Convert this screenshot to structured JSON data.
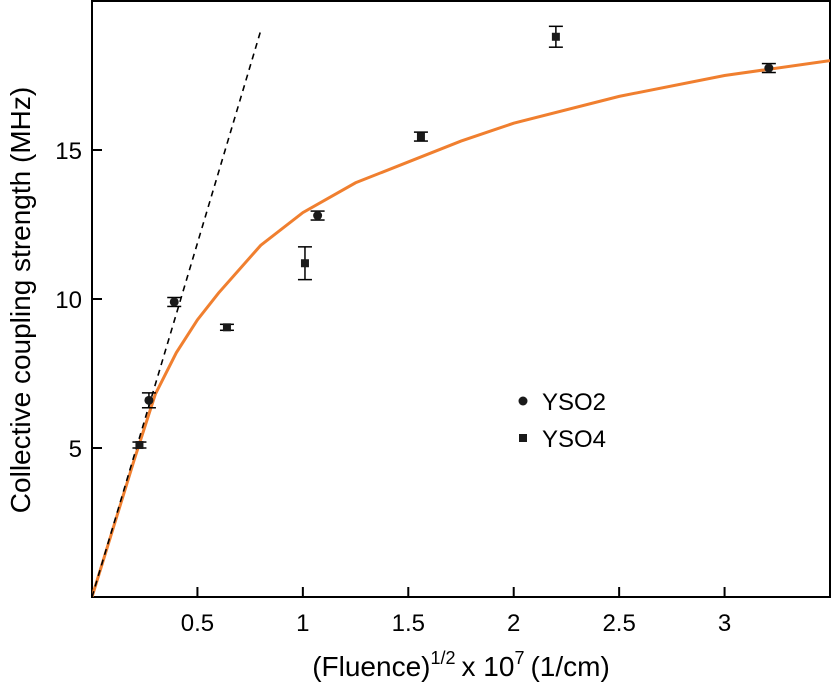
{
  "chart_data": {
    "type": "scatter",
    "x_label": [
      "(Fluence)",
      "1/2",
      "x 10",
      "7",
      "(1/cm)"
    ],
    "y_label": "Collective coupling strength (MHz)",
    "xlim": [
      0,
      3.5
    ],
    "ylim": [
      0,
      20
    ],
    "xticks": [
      0.5,
      1,
      1.5,
      2,
      2.5,
      3
    ],
    "yticks": [
      5,
      10,
      15
    ],
    "series": [
      {
        "name": "YSO2",
        "marker": "circle",
        "color": "#1a1a1a",
        "x": [
          0.27,
          0.39,
          1.07,
          3.21
        ],
        "values": [
          6.6,
          9.9,
          12.8,
          17.75
        ],
        "errors": [
          0.25,
          0.15,
          0.15,
          0.15
        ]
      },
      {
        "name": "YSO4",
        "marker": "square",
        "color": "#1a1a1a",
        "x": [
          0.225,
          0.64,
          1.01,
          1.56,
          2.2
        ],
        "values": [
          5.1,
          9.05,
          11.2,
          15.45,
          18.8
        ],
        "errors": [
          0.1,
          0.1,
          0.55,
          0.15,
          0.35
        ]
      }
    ],
    "lines": [
      {
        "style": "solid",
        "color": "#f07f2f",
        "x": [
          0,
          0.1,
          0.2,
          0.3,
          0.4,
          0.5,
          0.6,
          0.8,
          1.0,
          1.25,
          1.5,
          1.75,
          2,
          2.5,
          3,
          3.5
        ],
        "values": [
          0,
          2.3,
          4.6,
          6.8,
          8.2,
          9.3,
          10.2,
          11.8,
          12.9,
          13.9,
          14.6,
          15.3,
          15.9,
          16.8,
          17.5,
          18.0
        ]
      },
      {
        "style": "dashed",
        "color": "#000000",
        "x": [
          0,
          0.8
        ],
        "values": [
          0,
          19
        ]
      }
    ]
  }
}
